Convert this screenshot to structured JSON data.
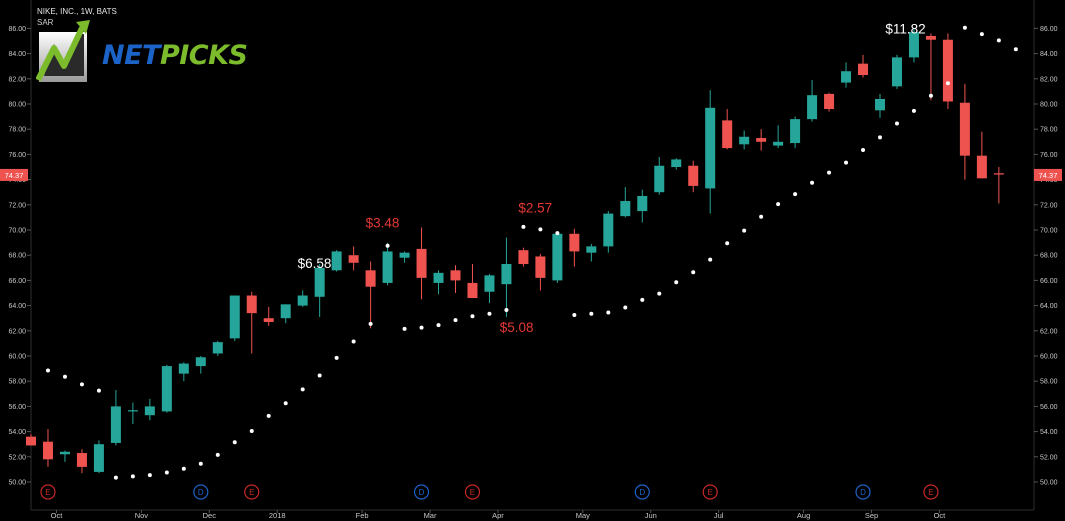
{
  "header": {
    "title": "NIKE, INC., 1W, BATS",
    "indicator": "SAR"
  },
  "logo": {
    "word1": "NET",
    "word2": "PICKS"
  },
  "colors": {
    "background": "#000000",
    "up": "#26a69a",
    "down": "#ef5350",
    "sar": "#ffffff",
    "annotation_red": "#e53935",
    "annotation_white": "#ffffff",
    "earnings": "#c62828",
    "dividend": "#1e63c6"
  },
  "chart_data": {
    "type": "candlestick",
    "title": "NIKE, INC., 1W, BATS",
    "xlabel": "",
    "ylabel": "",
    "ylim": [
      49,
      88.5
    ],
    "y_ticks": [
      "50.00",
      "52.00",
      "54.00",
      "56.00",
      "58.00",
      "60.00",
      "62.00",
      "64.00",
      "66.00",
      "68.00",
      "70.00",
      "72.00",
      "74.00",
      "76.00",
      "78.00",
      "80.00",
      "82.00",
      "84.00",
      "86.00"
    ],
    "x_ticks": [
      {
        "label": "Oct",
        "bar": 1.5
      },
      {
        "label": "Nov",
        "bar": 6.5
      },
      {
        "label": "Dec",
        "bar": 10.5
      },
      {
        "label": "2018",
        "bar": 14.5
      },
      {
        "label": "Feb",
        "bar": 19.5
      },
      {
        "label": "Mar",
        "bar": 23.5
      },
      {
        "label": "Apr",
        "bar": 27.5
      },
      {
        "label": "May",
        "bar": 32.5
      },
      {
        "label": "Jun",
        "bar": 36.5
      },
      {
        "label": "Jul",
        "bar": 40.5
      },
      {
        "label": "Aug",
        "bar": 45.5
      },
      {
        "label": "Sep",
        "bar": 49.5
      },
      {
        "label": "Oct",
        "bar": 53.5
      }
    ],
    "last_price": "74.37",
    "candles": [
      {
        "o": 53.6,
        "h": 53.8,
        "l": 52.9,
        "c": 52.9
      },
      {
        "o": 53.2,
        "h": 54.2,
        "l": 51.2,
        "c": 51.8
      },
      {
        "o": 52.2,
        "h": 52.5,
        "l": 51.6,
        "c": 52.4
      },
      {
        "o": 52.3,
        "h": 52.6,
        "l": 50.7,
        "c": 51.2
      },
      {
        "o": 50.8,
        "h": 53.3,
        "l": 50.7,
        "c": 53.0
      },
      {
        "o": 53.1,
        "h": 57.3,
        "l": 52.9,
        "c": 56.0
      },
      {
        "o": 55.6,
        "h": 56.3,
        "l": 54.6,
        "c": 55.7
      },
      {
        "o": 55.3,
        "h": 56.6,
        "l": 54.9,
        "c": 56.0
      },
      {
        "o": 55.6,
        "h": 59.3,
        "l": 55.5,
        "c": 59.2
      },
      {
        "o": 58.6,
        "h": 59.5,
        "l": 58.0,
        "c": 59.4
      },
      {
        "o": 59.2,
        "h": 60.0,
        "l": 58.6,
        "c": 59.9
      },
      {
        "o": 60.2,
        "h": 61.2,
        "l": 60.0,
        "c": 61.1
      },
      {
        "o": 61.4,
        "h": 64.8,
        "l": 61.2,
        "c": 64.8
      },
      {
        "o": 64.8,
        "h": 65.1,
        "l": 60.2,
        "c": 63.4
      },
      {
        "o": 63.0,
        "h": 63.9,
        "l": 62.4,
        "c": 62.7
      },
      {
        "o": 63.0,
        "h": 64.1,
        "l": 62.6,
        "c": 64.1
      },
      {
        "o": 64.0,
        "h": 65.2,
        "l": 63.9,
        "c": 64.8
      },
      {
        "o": 64.7,
        "h": 67.3,
        "l": 63.1,
        "c": 67.0
      },
      {
        "o": 66.8,
        "h": 68.4,
        "l": 66.7,
        "c": 68.3
      },
      {
        "o": 68.0,
        "h": 68.7,
        "l": 66.8,
        "c": 67.4
      },
      {
        "o": 66.8,
        "h": 67.5,
        "l": 62.2,
        "c": 65.5
      },
      {
        "o": 65.8,
        "h": 69.0,
        "l": 65.6,
        "c": 68.3
      },
      {
        "o": 67.8,
        "h": 68.3,
        "l": 67.4,
        "c": 68.2
      },
      {
        "o": 68.5,
        "h": 70.2,
        "l": 64.5,
        "c": 66.2
      },
      {
        "o": 65.8,
        "h": 66.8,
        "l": 64.9,
        "c": 66.6
      },
      {
        "o": 66.8,
        "h": 67.2,
        "l": 65.0,
        "c": 66.0
      },
      {
        "o": 65.8,
        "h": 67.3,
        "l": 64.6,
        "c": 64.6
      },
      {
        "o": 65.1,
        "h": 66.5,
        "l": 64.2,
        "c": 66.4
      },
      {
        "o": 65.7,
        "h": 69.4,
        "l": 63.1,
        "c": 67.3
      },
      {
        "o": 68.4,
        "h": 68.6,
        "l": 67.1,
        "c": 67.3
      },
      {
        "o": 67.9,
        "h": 68.1,
        "l": 65.2,
        "c": 66.2
      },
      {
        "o": 66.0,
        "h": 69.7,
        "l": 65.8,
        "c": 69.7
      },
      {
        "o": 69.7,
        "h": 70.1,
        "l": 67.1,
        "c": 68.3
      },
      {
        "o": 68.2,
        "h": 68.9,
        "l": 67.5,
        "c": 68.7
      },
      {
        "o": 68.7,
        "h": 71.5,
        "l": 68.2,
        "c": 71.3
      },
      {
        "o": 71.1,
        "h": 73.4,
        "l": 71.0,
        "c": 72.3
      },
      {
        "o": 71.5,
        "h": 73.2,
        "l": 70.6,
        "c": 72.7
      },
      {
        "o": 73.0,
        "h": 75.8,
        "l": 72.8,
        "c": 75.1
      },
      {
        "o": 75.0,
        "h": 75.7,
        "l": 74.8,
        "c": 75.6
      },
      {
        "o": 75.1,
        "h": 75.5,
        "l": 73.0,
        "c": 73.5
      },
      {
        "o": 73.3,
        "h": 81.1,
        "l": 71.3,
        "c": 79.7
      },
      {
        "o": 78.7,
        "h": 79.6,
        "l": 76.4,
        "c": 76.5
      },
      {
        "o": 76.8,
        "h": 77.9,
        "l": 76.4,
        "c": 77.4
      },
      {
        "o": 77.3,
        "h": 78.0,
        "l": 76.3,
        "c": 77.0
      },
      {
        "o": 76.7,
        "h": 78.3,
        "l": 76.5,
        "c": 77.0
      },
      {
        "o": 76.9,
        "h": 79.0,
        "l": 76.5,
        "c": 78.8
      },
      {
        "o": 78.8,
        "h": 81.9,
        "l": 78.6,
        "c": 80.7
      },
      {
        "o": 80.8,
        "h": 80.9,
        "l": 79.4,
        "c": 79.6
      },
      {
        "o": 81.7,
        "h": 83.3,
        "l": 81.3,
        "c": 82.6
      },
      {
        "o": 83.2,
        "h": 83.9,
        "l": 82.1,
        "c": 82.3
      },
      {
        "o": 79.5,
        "h": 80.8,
        "l": 78.9,
        "c": 80.4
      },
      {
        "o": 81.4,
        "h": 83.9,
        "l": 81.2,
        "c": 83.7
      },
      {
        "o": 83.7,
        "h": 86.0,
        "l": 83.3,
        "c": 85.7
      },
      {
        "o": 85.4,
        "h": 85.6,
        "l": 80.3,
        "c": 85.1
      },
      {
        "o": 85.1,
        "h": 85.6,
        "l": 79.6,
        "c": 80.2
      },
      {
        "o": 80.1,
        "h": 81.6,
        "l": 74.0,
        "c": 75.9
      },
      {
        "o": 75.9,
        "h": 77.8,
        "l": 74.1,
        "c": 74.1
      },
      {
        "o": 74.5,
        "h": 75.0,
        "l": 72.1,
        "c": 74.4
      }
    ],
    "sar": [
      {
        "bar": 1,
        "v": 58.85
      },
      {
        "bar": 2,
        "v": 58.35
      },
      {
        "bar": 3,
        "v": 57.75
      },
      {
        "bar": 4,
        "v": 57.25
      },
      {
        "bar": 5,
        "v": 50.35
      },
      {
        "bar": 6,
        "v": 50.45
      },
      {
        "bar": 7,
        "v": 50.55
      },
      {
        "bar": 8,
        "v": 50.75
      },
      {
        "bar": 9,
        "v": 51.05
      },
      {
        "bar": 10,
        "v": 51.45
      },
      {
        "bar": 11,
        "v": 52.15
      },
      {
        "bar": 12,
        "v": 53.15
      },
      {
        "bar": 13,
        "v": 54.05
      },
      {
        "bar": 14,
        "v": 55.25
      },
      {
        "bar": 15,
        "v": 56.25
      },
      {
        "bar": 16,
        "v": 57.35
      },
      {
        "bar": 17,
        "v": 58.45
      },
      {
        "bar": 18,
        "v": 59.85
      },
      {
        "bar": 19,
        "v": 61.15
      },
      {
        "bar": 20,
        "v": 62.55
      },
      {
        "bar": 21,
        "v": 68.75
      },
      {
        "bar": 22,
        "v": 62.15
      },
      {
        "bar": 23,
        "v": 62.25
      },
      {
        "bar": 24,
        "v": 62.45
      },
      {
        "bar": 25,
        "v": 62.85
      },
      {
        "bar": 26,
        "v": 63.15
      },
      {
        "bar": 27,
        "v": 63.35
      },
      {
        "bar": 28,
        "v": 63.65
      },
      {
        "bar": 29,
        "v": 70.25
      },
      {
        "bar": 30,
        "v": 70.05
      },
      {
        "bar": 31,
        "v": 69.75
      },
      {
        "bar": 32,
        "v": 63.25
      },
      {
        "bar": 33,
        "v": 63.35
      },
      {
        "bar": 34,
        "v": 63.45
      },
      {
        "bar": 35,
        "v": 63.85
      },
      {
        "bar": 36,
        "v": 64.45
      },
      {
        "bar": 37,
        "v": 64.95
      },
      {
        "bar": 38,
        "v": 65.85
      },
      {
        "bar": 39,
        "v": 66.65
      },
      {
        "bar": 40,
        "v": 67.65
      },
      {
        "bar": 41,
        "v": 68.95
      },
      {
        "bar": 42,
        "v": 69.95
      },
      {
        "bar": 43,
        "v": 71.05
      },
      {
        "bar": 44,
        "v": 72.05
      },
      {
        "bar": 45,
        "v": 72.85
      },
      {
        "bar": 46,
        "v": 73.75
      },
      {
        "bar": 47,
        "v": 74.55
      },
      {
        "bar": 48,
        "v": 75.35
      },
      {
        "bar": 49,
        "v": 76.35
      },
      {
        "bar": 50,
        "v": 77.35
      },
      {
        "bar": 51,
        "v": 78.45
      },
      {
        "bar": 52,
        "v": 79.45
      },
      {
        "bar": 53,
        "v": 80.65
      },
      {
        "bar": 54,
        "v": 81.65
      },
      {
        "bar": 55,
        "v": 86.05
      },
      {
        "bar": 56,
        "v": 85.55
      },
      {
        "bar": 57,
        "v": 85.05
      },
      {
        "bar": 58,
        "v": 84.35
      }
    ],
    "annotations": [
      {
        "text": "$6.58",
        "bar": 16.7,
        "y": 67.0,
        "color": "annotation_white"
      },
      {
        "text": "$3.48",
        "bar": 20.7,
        "y": 70.2,
        "color": "annotation_red"
      },
      {
        "text": "$5.08",
        "bar": 28.6,
        "y": 61.9,
        "color": "annotation_red"
      },
      {
        "text": "$2.57",
        "bar": 29.7,
        "y": 71.4,
        "color": "annotation_red"
      },
      {
        "text": "$11.82",
        "bar": 51.5,
        "y": 85.6,
        "color": "annotation_white"
      }
    ],
    "events": [
      {
        "type": "E",
        "bar": 1
      },
      {
        "type": "D",
        "bar": 10
      },
      {
        "type": "E",
        "bar": 13
      },
      {
        "type": "D",
        "bar": 23
      },
      {
        "type": "E",
        "bar": 26
      },
      {
        "type": "D",
        "bar": 36
      },
      {
        "type": "E",
        "bar": 40
      },
      {
        "type": "D",
        "bar": 49
      },
      {
        "type": "E",
        "bar": 53
      }
    ]
  }
}
